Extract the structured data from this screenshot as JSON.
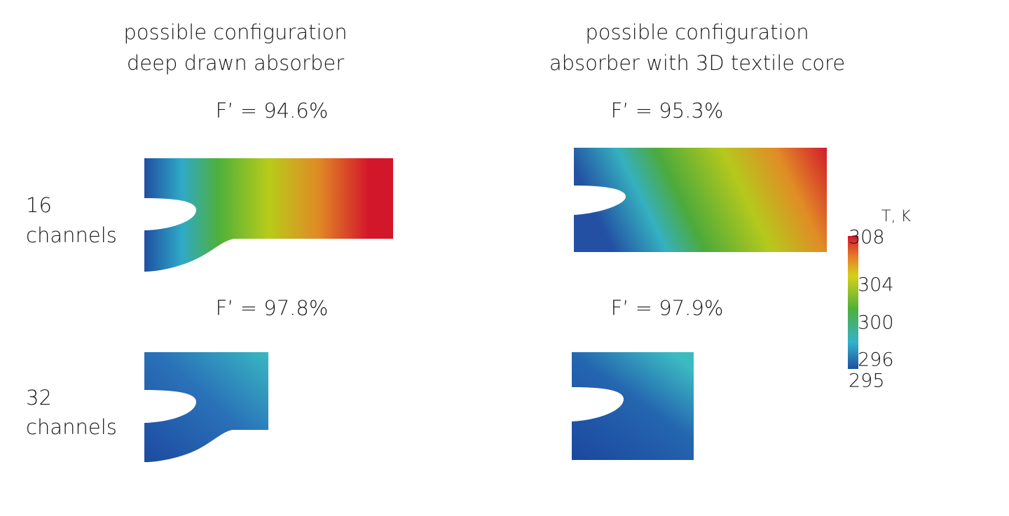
{
  "columns": [
    {
      "line1": "possible configuration",
      "line2": "deep drawn absorber"
    },
    {
      "line1": "possible configuration",
      "line2": "absorber with 3D textile core"
    }
  ],
  "rows": [
    {
      "count": "16",
      "unit": "channels",
      "efficiency": [
        "F’ = 94.6%",
        "F’ = 95.3%"
      ]
    },
    {
      "count": "32",
      "unit": "channels",
      "efficiency": [
        "F’ = 97.8%",
        "F’ = 97.9%"
      ]
    }
  ],
  "colorbar": {
    "title": "T, K",
    "ticks": [
      308,
      304,
      300,
      296,
      295
    ]
  }
}
